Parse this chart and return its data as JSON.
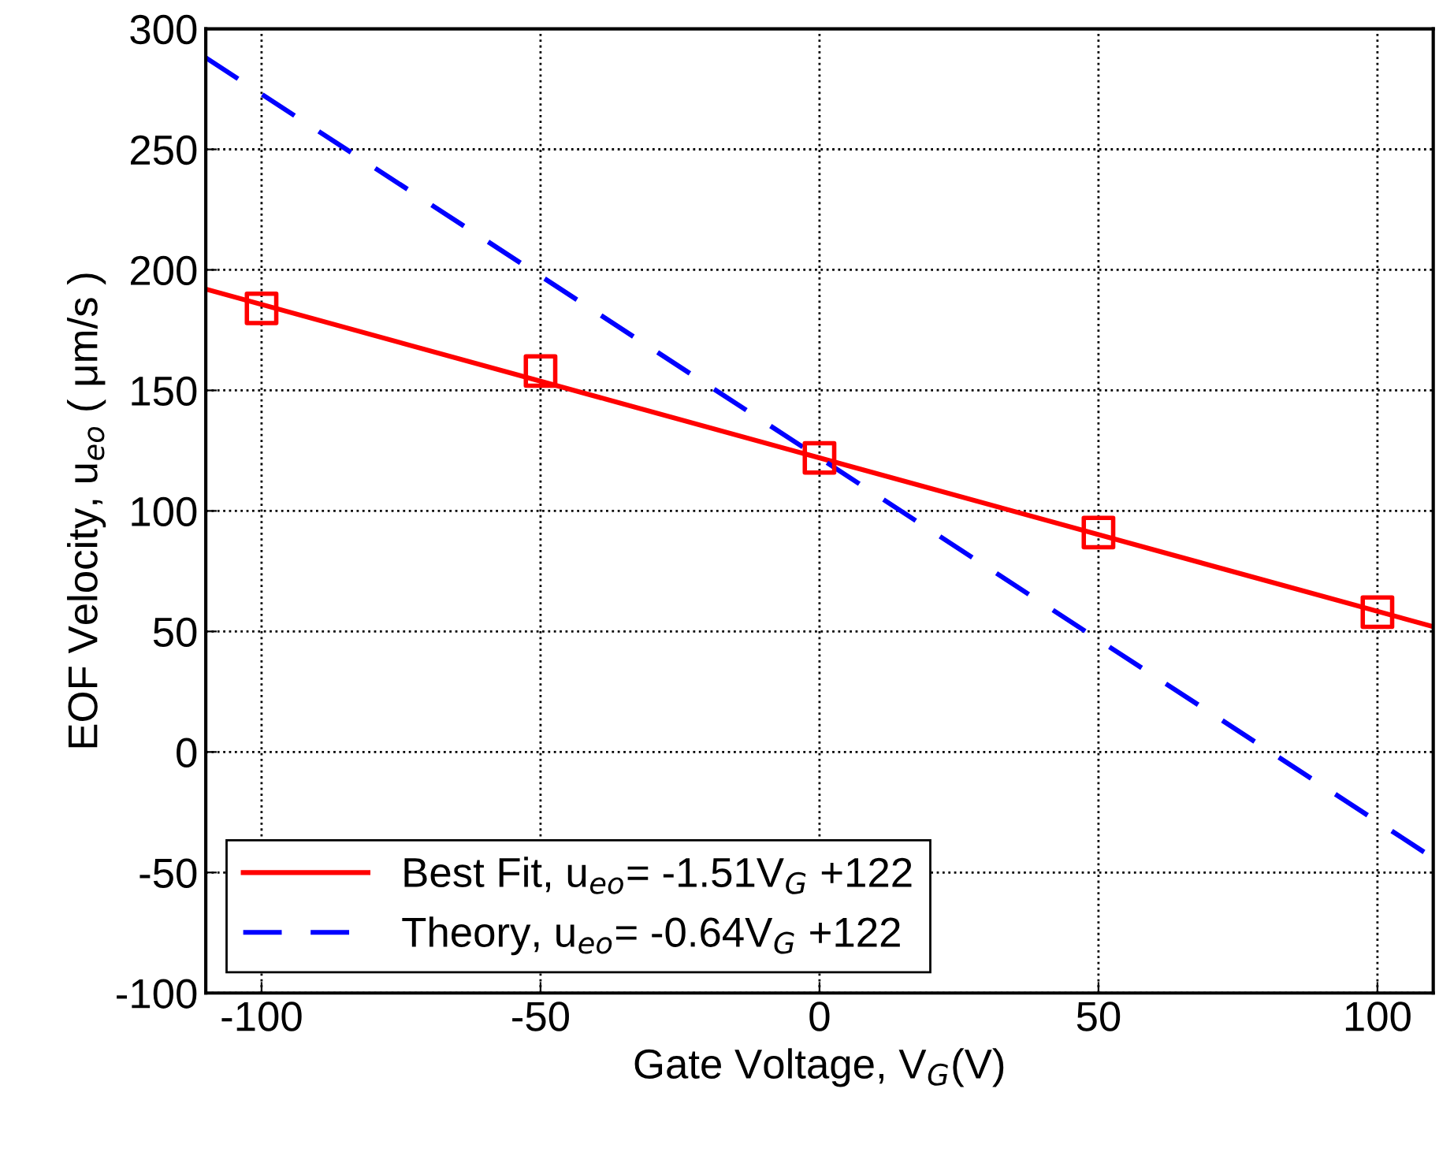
{
  "chart_data": {
    "type": "line",
    "xlabel": "Gate Voltage, V$_{G}$(V)",
    "ylabel": "EOF Velocity, u$_{eo}$ ( μm/s )",
    "xlim": [
      -110,
      110
    ],
    "xticks": [
      -100,
      -50,
      0,
      50,
      100
    ],
    "ylim": [
      -100,
      300
    ],
    "yticks": [
      -100,
      -50,
      0,
      50,
      100,
      150,
      200,
      250,
      300
    ],
    "grid": true,
    "legend": "bottom left",
    "series": [
      {
        "name": "Best Fit, u$_{eo}$= -1.51V$_{G}$ +122",
        "color": "#ff0000",
        "line_style": "solid",
        "marker": "none",
        "x": [
          -110,
          110
        ],
        "values": [
          192,
          52
        ]
      },
      {
        "name": "Theory, u$_{eo}$= -0.64V$_{G}$ +122",
        "color": "#0000ff",
        "line_style": "dashed",
        "marker": "none",
        "x": [
          -110,
          110
        ],
        "values": [
          288,
          -44
        ]
      },
      {
        "type": "scatter",
        "color": "#ff0000",
        "marker": "square",
        "x": [
          -100,
          -50,
          0,
          50,
          100
        ],
        "values": [
          184,
          158,
          122,
          91,
          58
        ]
      }
    ]
  }
}
